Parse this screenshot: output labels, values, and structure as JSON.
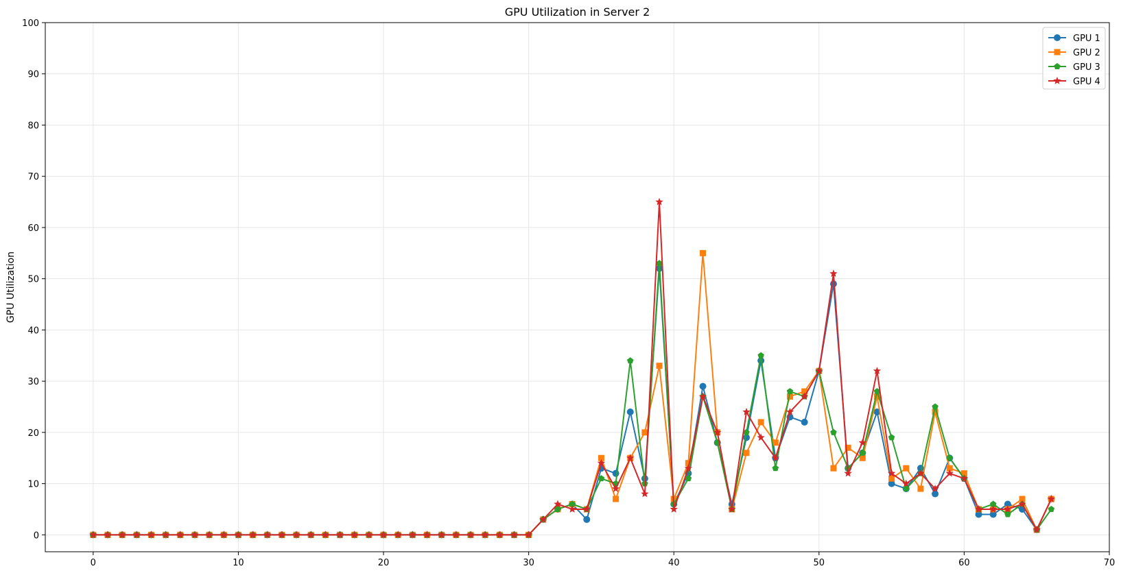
{
  "chart_data": {
    "type": "line",
    "title": "GPU Utilization in Server 2",
    "xlabel": "",
    "ylabel": "GPU Utilization",
    "xlim": [
      -3.3,
      70
    ],
    "ylim": [
      -3.3,
      100
    ],
    "xticks": [
      0,
      10,
      20,
      30,
      40,
      50,
      60,
      70
    ],
    "yticks": [
      0,
      10,
      20,
      30,
      40,
      50,
      60,
      70,
      80,
      90,
      100
    ],
    "grid": true,
    "legend_position": "top-right",
    "x": [
      0,
      1,
      2,
      3,
      4,
      5,
      6,
      7,
      8,
      9,
      10,
      11,
      12,
      13,
      14,
      15,
      16,
      17,
      18,
      19,
      20,
      21,
      22,
      23,
      24,
      25,
      26,
      27,
      28,
      29,
      30,
      31,
      32,
      33,
      34,
      35,
      36,
      37,
      38,
      39,
      40,
      41,
      42,
      43,
      44,
      45,
      46,
      47,
      48,
      49,
      50,
      51,
      52,
      53,
      54,
      55,
      56,
      57,
      58,
      59,
      60,
      61,
      62,
      63,
      64,
      65,
      66
    ],
    "series": [
      {
        "name": "GPU 1",
        "color": "#1f77b4",
        "marker": "circle",
        "values": [
          0,
          0,
          0,
          0,
          0,
          0,
          0,
          0,
          0,
          0,
          0,
          0,
          0,
          0,
          0,
          0,
          0,
          0,
          0,
          0,
          0,
          0,
          0,
          0,
          0,
          0,
          0,
          0,
          0,
          0,
          0,
          3,
          5,
          6,
          3,
          13,
          12,
          24,
          11,
          52,
          6,
          12,
          29,
          18,
          6,
          19,
          34,
          15,
          23,
          22,
          32,
          49,
          13,
          16,
          24,
          10,
          9,
          13,
          8,
          15,
          11,
          4,
          4,
          6,
          5,
          1,
          7
        ]
      },
      {
        "name": "GPU 2",
        "color": "#ff7f0e",
        "marker": "square",
        "values": [
          0,
          0,
          0,
          0,
          0,
          0,
          0,
          0,
          0,
          0,
          0,
          0,
          0,
          0,
          0,
          0,
          0,
          0,
          0,
          0,
          0,
          0,
          0,
          0,
          0,
          0,
          0,
          0,
          0,
          0,
          0,
          3,
          5,
          6,
          5,
          15,
          7,
          15,
          20,
          33,
          7,
          14,
          55,
          20,
          5,
          16,
          22,
          18,
          27,
          28,
          32,
          13,
          17,
          15,
          27,
          11,
          13,
          9,
          24,
          13,
          12,
          5,
          5,
          5,
          7,
          1,
          7
        ]
      },
      {
        "name": "GPU 3",
        "color": "#2ca02c",
        "marker": "pentagon",
        "values": [
          0,
          0,
          0,
          0,
          0,
          0,
          0,
          0,
          0,
          0,
          0,
          0,
          0,
          0,
          0,
          0,
          0,
          0,
          0,
          0,
          0,
          0,
          0,
          0,
          0,
          0,
          0,
          0,
          0,
          0,
          0,
          3,
          5,
          6,
          5,
          11,
          10,
          34,
          10,
          53,
          6,
          11,
          27,
          18,
          5,
          20,
          35,
          13,
          28,
          27,
          32,
          20,
          13,
          16,
          28,
          19,
          9,
          12,
          25,
          15,
          11,
          5,
          6,
          4,
          6,
          1,
          5
        ]
      },
      {
        "name": "GPU 4",
        "color": "#d62728",
        "marker": "star",
        "values": [
          0,
          0,
          0,
          0,
          0,
          0,
          0,
          0,
          0,
          0,
          0,
          0,
          0,
          0,
          0,
          0,
          0,
          0,
          0,
          0,
          0,
          0,
          0,
          0,
          0,
          0,
          0,
          0,
          0,
          0,
          0,
          3,
          6,
          5,
          5,
          14,
          9,
          15,
          8,
          65,
          5,
          13,
          27,
          20,
          5,
          24,
          19,
          15,
          24,
          27,
          32,
          51,
          12,
          18,
          32,
          12,
          10,
          12,
          9,
          12,
          11,
          5,
          5,
          5,
          6,
          1,
          7
        ]
      }
    ]
  }
}
